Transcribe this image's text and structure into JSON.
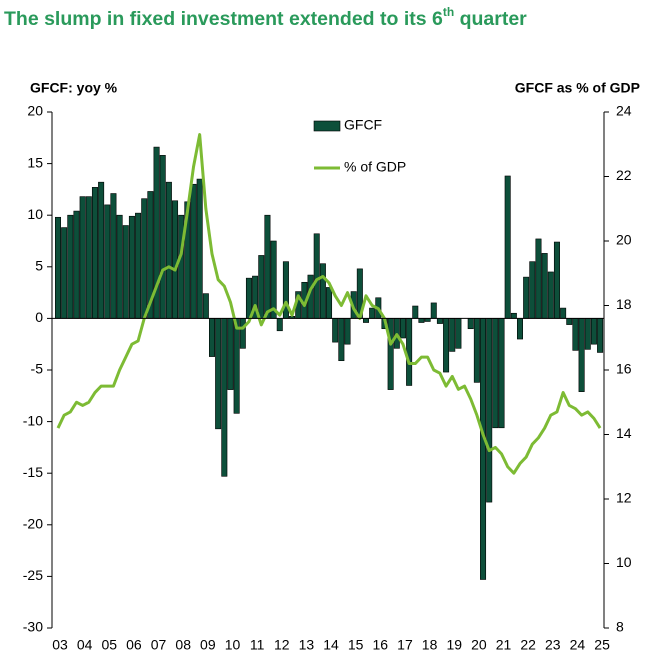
{
  "chart_data": {
    "type": "bar",
    "title_parts": [
      "The slump in fixed investment extended to its 6",
      "th",
      " quarter"
    ],
    "y_label": "GFCF: yoy %",
    "y2_label": "GFCF as % of GDP",
    "categories": [
      "03",
      null,
      null,
      null,
      "04",
      null,
      null,
      null,
      "05",
      null,
      null,
      null,
      "06",
      null,
      null,
      null,
      "07",
      null,
      null,
      null,
      "08",
      null,
      null,
      null,
      "09",
      null,
      null,
      null,
      "10",
      null,
      null,
      null,
      "11",
      null,
      null,
      null,
      "12",
      null,
      null,
      null,
      "13",
      null,
      null,
      null,
      "14",
      null,
      null,
      null,
      "15",
      null,
      null,
      null,
      "16",
      null,
      null,
      null,
      "17",
      null,
      null,
      null,
      "18",
      null,
      null,
      null,
      "19",
      null,
      null,
      null,
      "20",
      null,
      null,
      null,
      "21",
      null,
      null,
      null,
      "22",
      null,
      null,
      null,
      "23",
      null,
      null,
      null,
      "24",
      null,
      null,
      null,
      "25"
    ],
    "series": [
      {
        "name": "GFCF",
        "type": "bar",
        "color": "#0d4f3a",
        "values": [
          9.8,
          8.8,
          10.0,
          10.4,
          11.8,
          11.8,
          12.7,
          13.2,
          11.0,
          12.1,
          10.0,
          9.0,
          9.9,
          10.2,
          11.6,
          12.3,
          16.6,
          15.8,
          13.2,
          11.4,
          10.0,
          11.3,
          13.0,
          13.5,
          2.4,
          -3.7,
          -10.7,
          -15.3,
          -6.9,
          -9.2,
          -2.9,
          3.9,
          4.1,
          6.1,
          10.0,
          7.5,
          -1.2,
          5.5,
          0.2,
          2.6,
          3.5,
          4.2,
          8.2,
          5.3,
          3.0,
          -2.3,
          -4.1,
          -2.5,
          2.6,
          4.8,
          -0.4,
          1.0,
          2.0,
          -1.0,
          -6.9,
          -2.9,
          -1.9,
          -6.5,
          1.2,
          -0.4,
          -0.3,
          1.5,
          -0.5,
          -5.2,
          -3.2,
          -2.9,
          0.0,
          -1.0,
          -6.2,
          -25.3,
          -17.8,
          -10.6,
          -10.6,
          13.8,
          0.5,
          -2.0,
          4.0,
          5.5,
          7.7,
          6.3,
          4.5,
          7.4,
          1.0,
          -0.6,
          -3.1,
          -7.1,
          -3.0,
          -2.5,
          -3.3
        ]
      },
      {
        "name": "% of GDP",
        "type": "line",
        "axis": "y2",
        "color": "#7dbb34",
        "values": [
          14.2,
          14.6,
          14.7,
          15.0,
          14.9,
          15.0,
          15.3,
          15.5,
          15.5,
          15.5,
          16.0,
          16.4,
          16.8,
          16.9,
          17.6,
          18.1,
          18.6,
          19.1,
          19.2,
          19.1,
          19.6,
          20.9,
          22.3,
          23.3,
          21.0,
          19.6,
          18.8,
          18.6,
          18.1,
          17.3,
          17.3,
          17.5,
          18.0,
          17.4,
          17.8,
          17.9,
          17.7,
          18.1,
          17.7,
          18.3,
          18.0,
          18.5,
          18.8,
          18.9,
          18.7,
          18.3,
          18.0,
          18.4,
          17.9,
          17.6,
          18.3,
          18.0,
          17.9,
          17.6,
          16.8,
          17.1,
          16.8,
          16.2,
          16.2,
          16.4,
          16.4,
          16.0,
          15.9,
          15.5,
          15.8,
          15.4,
          15.5,
          15.1,
          14.6,
          14.0,
          13.5,
          13.6,
          13.4,
          13.0,
          12.8,
          13.1,
          13.3,
          13.7,
          13.9,
          14.2,
          14.6,
          14.7,
          15.3,
          14.9,
          14.8,
          14.6,
          14.7,
          14.5,
          14.2
        ]
      }
    ],
    "ylim": [
      -30,
      20
    ],
    "yticks": [
      -30,
      -25,
      -20,
      -15,
      -10,
      -5,
      0,
      5,
      10,
      15,
      20
    ],
    "y2lim": [
      8,
      24
    ],
    "y2ticks": [
      8,
      10,
      12,
      14,
      16,
      18,
      20,
      22,
      24
    ]
  }
}
